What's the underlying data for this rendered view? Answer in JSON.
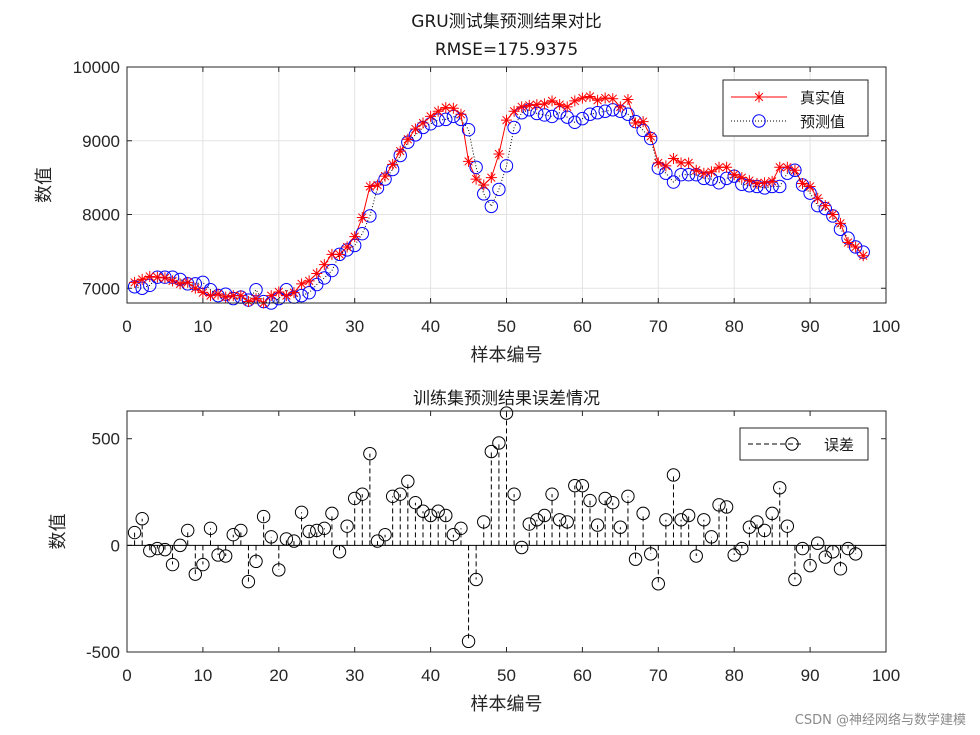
{
  "watermark": "CSDN @神经网络与数学建模",
  "chart_data": [
    {
      "type": "line",
      "title": "GRU测试集预测结果对比",
      "subtitle": "RMSE=175.9375",
      "xlabel": "样本编号",
      "ylabel": "数值",
      "xlim": [
        0,
        100
      ],
      "ylim": [
        6800,
        10000
      ],
      "xticks": [
        0,
        10,
        20,
        30,
        40,
        50,
        60,
        70,
        80,
        90,
        100
      ],
      "yticks": [
        7000,
        8000,
        9000,
        10000
      ],
      "grid": true,
      "legend_position": "top-right",
      "series": [
        {
          "name": "真实值",
          "color": "#ff0000",
          "marker": "asterisk",
          "line": "solid",
          "values": [
            7080,
            7120,
            7160,
            7150,
            7140,
            7100,
            7060,
            7080,
            7000,
            6940,
            6900,
            6920,
            6880,
            6900,
            6900,
            6820,
            6860,
            6800,
            6900,
            6950,
            6900,
            6940,
            7060,
            7100,
            7200,
            7320,
            7460,
            7460,
            7560,
            7700,
            7960,
            8380,
            8400,
            8520,
            8680,
            8860,
            9020,
            9160,
            9240,
            9330,
            9400,
            9450,
            9440,
            9360,
            8720,
            8480,
            8400,
            8500,
            8820,
            9280,
            9400,
            9460,
            9480,
            9490,
            9500,
            9540,
            9490,
            9460,
            9540,
            9580,
            9600,
            9550,
            9580,
            9570,
            9460,
            9560,
            9240,
            9260,
            9060,
            8700,
            8660,
            8760,
            8700,
            8700,
            8600,
            8560,
            8580,
            8640,
            8640,
            8540,
            8500,
            8460,
            8420,
            8430,
            8450,
            8640,
            8640,
            8600,
            8420,
            8380,
            8220,
            8120,
            8000,
            7880,
            7620,
            7560,
            7440
          ]
        },
        {
          "name": "预测值",
          "color": "#0000ff",
          "marker": "circle",
          "line": "dotted",
          "values": [
            7020,
            7000,
            7040,
            7150,
            7150,
            7150,
            7120,
            7060,
            7060,
            7080,
            6980,
            6900,
            6920,
            6860,
            6880,
            6840,
            6980,
            6820,
            6800,
            6860,
            6980,
            6880,
            6900,
            6940,
            7050,
            7140,
            7240,
            7460,
            7520,
            7580,
            7740,
            7980,
            8360,
            8480,
            8610,
            8800,
            8980,
            9080,
            9180,
            9230,
            9280,
            9290,
            9330,
            9290,
            9150,
            8640,
            8280,
            8110,
            8340,
            8660,
            9180,
            9380,
            9420,
            9370,
            9350,
            9330,
            9380,
            9320,
            9250,
            9300,
            9360,
            9380,
            9400,
            9420,
            9400,
            9360,
            9260,
            9140,
            9030,
            8630,
            8560,
            8440,
            8540,
            8540,
            8540,
            8490,
            8480,
            8430,
            8490,
            8520,
            8410,
            8390,
            8380,
            8360,
            8380,
            8380,
            8560,
            8600,
            8400,
            8290,
            8120,
            8080,
            7980,
            7800,
            7680,
            7560,
            7490
          ]
        }
      ]
    },
    {
      "type": "stem",
      "title": "训练集预测结果误差情况",
      "xlabel": "样本编号",
      "ylabel": "数值",
      "xlim": [
        0,
        100
      ],
      "ylim": [
        -500,
        630
      ],
      "xticks": [
        0,
        10,
        20,
        30,
        40,
        50,
        60,
        70,
        80,
        90,
        100
      ],
      "yticks": [
        -500,
        0,
        500
      ],
      "grid": false,
      "legend_position": "top-right",
      "series": [
        {
          "name": "误差",
          "color": "#000000",
          "marker": "circle",
          "line": "dashed",
          "values": [
            60,
            125,
            -25,
            -15,
            -20,
            -90,
            0,
            70,
            -135,
            -90,
            80,
            -45,
            -50,
            50,
            70,
            -170,
            -75,
            135,
            40,
            -115,
            30,
            20,
            155,
            65,
            70,
            80,
            150,
            -30,
            90,
            220,
            240,
            430,
            20,
            50,
            230,
            240,
            300,
            200,
            160,
            140,
            160,
            140,
            50,
            80,
            -450,
            -160,
            110,
            440,
            480,
            620,
            240,
            -10,
            100,
            120,
            140,
            240,
            120,
            110,
            280,
            280,
            210,
            95,
            220,
            200,
            85,
            230,
            -65,
            150,
            -40,
            -180,
            120,
            330,
            120,
            140,
            -50,
            120,
            40,
            190,
            180,
            -45,
            -15,
            85,
            110,
            70,
            150,
            270,
            90,
            -160,
            -15,
            -95,
            10,
            -55,
            -30,
            -110,
            -15,
            -40
          ]
        }
      ]
    }
  ]
}
